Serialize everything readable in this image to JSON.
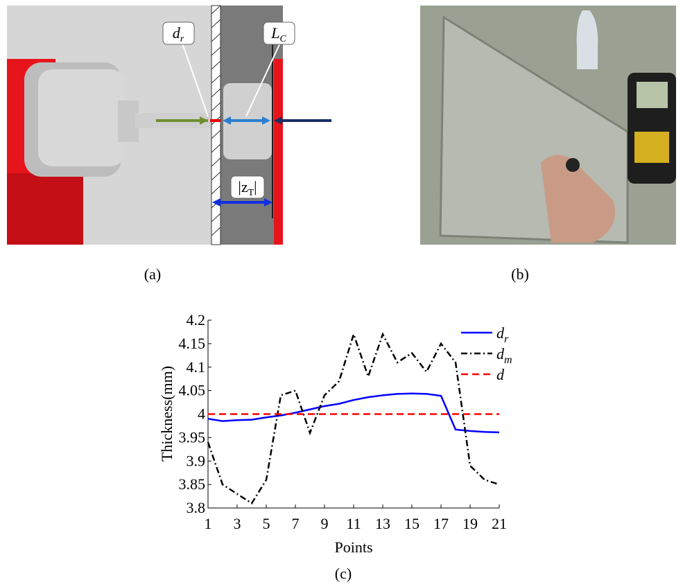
{
  "figure": {
    "panel_labels": [
      "(a)",
      "(b)",
      "(c)"
    ],
    "panel_a": {
      "annotations": [
        {
          "main": "d",
          "sub": "r"
        },
        {
          "main": "L",
          "sub": "C"
        },
        {
          "main": "|z",
          "sub": "T",
          "after": "|"
        }
      ]
    }
  },
  "chart_data": {
    "type": "line",
    "xlabel": "Points",
    "ylabel": "Thickness(mm)",
    "x": [
      1,
      2,
      3,
      4,
      5,
      6,
      7,
      8,
      9,
      10,
      11,
      12,
      13,
      14,
      15,
      16,
      17,
      18,
      19,
      20,
      21
    ],
    "series": [
      {
        "name": "dr",
        "color": "#0000ff",
        "dash": "solid",
        "values": [
          3.99,
          3.985,
          3.987,
          3.988,
          3.993,
          3.997,
          4.003,
          4.01,
          4.017,
          4.022,
          4.03,
          4.036,
          4.04,
          4.043,
          4.044,
          4.043,
          4.039,
          3.967,
          3.964,
          3.962,
          3.961
        ]
      },
      {
        "name": "dm",
        "color": "#000000",
        "dash": "dashdot",
        "values": [
          3.94,
          3.85,
          3.83,
          3.81,
          3.86,
          4.04,
          4.05,
          3.96,
          4.04,
          4.07,
          4.17,
          4.08,
          4.17,
          4.11,
          4.13,
          4.09,
          4.15,
          4.11,
          3.89,
          3.86,
          3.85
        ]
      },
      {
        "name": "d",
        "color": "#ff0000",
        "dash": "dashed",
        "values": [
          4,
          4,
          4,
          4,
          4,
          4,
          4,
          4,
          4,
          4,
          4,
          4,
          4,
          4,
          4,
          4,
          4,
          4,
          4,
          4,
          4
        ]
      }
    ],
    "xlim": [
      1,
      21
    ],
    "xticks": [
      1,
      3,
      5,
      7,
      9,
      11,
      13,
      15,
      17,
      19,
      21
    ],
    "ylim": [
      3.8,
      4.2
    ],
    "yticks": [
      3.8,
      3.85,
      3.9,
      3.95,
      4,
      4.05,
      4.1,
      4.15,
      4.2
    ],
    "legend": "upper right",
    "grid": false
  }
}
